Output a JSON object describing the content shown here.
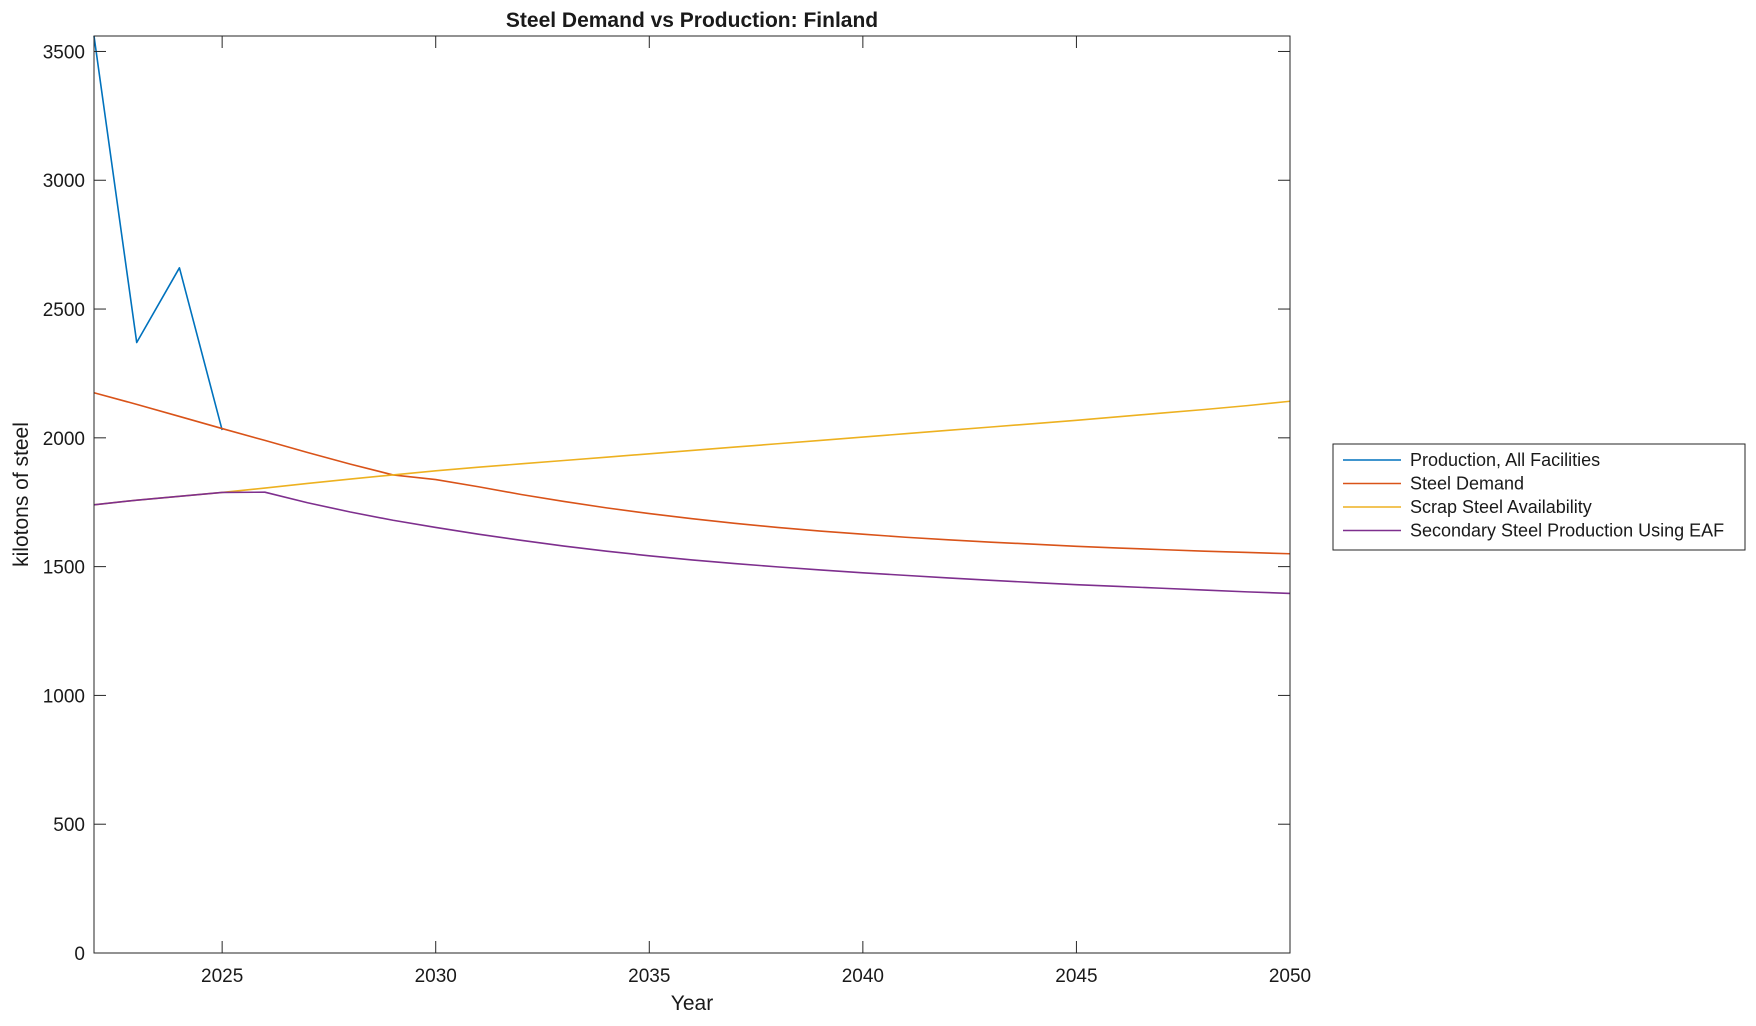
{
  "chart_data": {
    "type": "line",
    "title": "Steel Demand vs Production: Finland",
    "xlabel": "Year",
    "ylabel": "kilotons of steel",
    "xlim": [
      2022,
      2050
    ],
    "ylim": [
      0,
      3560
    ],
    "xticks": [
      2025,
      2030,
      2035,
      2040,
      2045,
      2050
    ],
    "yticks": [
      0,
      500,
      1000,
      1500,
      2000,
      2500,
      3000,
      3500
    ],
    "grid": false,
    "legend_position": "outside-right",
    "series": [
      {
        "name": "Production, All Facilities",
        "color": "#0072BD",
        "x": [
          2022,
          2023,
          2024,
          2025
        ],
        "y": [
          3560,
          2370,
          2660,
          2030
        ]
      },
      {
        "name": "Steel Demand",
        "color": "#D95319",
        "x": [
          2022,
          2023,
          2024,
          2025,
          2026,
          2027,
          2028,
          2029,
          2030,
          2031,
          2032,
          2033,
          2034,
          2035,
          2036,
          2037,
          2038,
          2039,
          2040,
          2041,
          2042,
          2043,
          2044,
          2045,
          2046,
          2047,
          2048,
          2049,
          2050
        ],
        "y": [
          2175,
          2130,
          2083,
          2036,
          1990,
          1943,
          1898,
          1856,
          1838,
          1810,
          1780,
          1753,
          1728,
          1706,
          1686,
          1668,
          1652,
          1638,
          1626,
          1614,
          1604,
          1595,
          1587,
          1579,
          1572,
          1566,
          1560,
          1555,
          1550
        ]
      },
      {
        "name": "Scrap Steel Availability",
        "color": "#EDB120",
        "x": [
          2022,
          2023,
          2024,
          2025,
          2026,
          2027,
          2028,
          2029,
          2030,
          2031,
          2032,
          2033,
          2034,
          2035,
          2036,
          2037,
          2038,
          2039,
          2040,
          2041,
          2042,
          2043,
          2044,
          2045,
          2046,
          2047,
          2048,
          2049,
          2050
        ],
        "y": [
          1740,
          1758,
          1773,
          1788,
          1805,
          1823,
          1840,
          1856,
          1872,
          1886,
          1899,
          1912,
          1925,
          1938,
          1951,
          1964,
          1977,
          1990,
          2003,
          2016,
          2029,
          2042,
          2055,
          2068,
          2082,
          2096,
          2110,
          2125,
          2142
        ]
      },
      {
        "name": "Secondary Steel Production Using EAF",
        "color": "#7E2F8E",
        "x": [
          2022,
          2023,
          2024,
          2025,
          2026,
          2027,
          2028,
          2029,
          2030,
          2031,
          2032,
          2033,
          2034,
          2035,
          2036,
          2037,
          2038,
          2039,
          2040,
          2041,
          2042,
          2043,
          2044,
          2045,
          2046,
          2047,
          2048,
          2049,
          2050
        ],
        "y": [
          1740,
          1758,
          1773,
          1788,
          1789,
          1748,
          1712,
          1680,
          1652,
          1626,
          1602,
          1580,
          1560,
          1542,
          1526,
          1512,
          1499,
          1487,
          1476,
          1466,
          1456,
          1447,
          1438,
          1430,
          1423,
          1416,
          1409,
          1402,
          1396
        ]
      }
    ]
  }
}
